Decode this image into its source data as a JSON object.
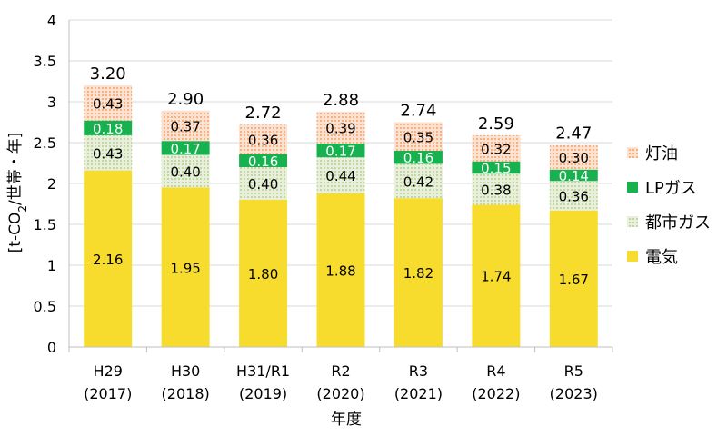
{
  "chart_data": {
    "type": "bar",
    "stacked": true,
    "categories": [
      [
        "H29",
        "(2017)"
      ],
      [
        "H30",
        "(2018)"
      ],
      [
        "H31/R1",
        "(2019)"
      ],
      [
        "R2",
        "(2020)"
      ],
      [
        "R3",
        "(2021)"
      ],
      [
        "R4",
        "(2022)"
      ],
      [
        "R5",
        "(2023)"
      ]
    ],
    "series": [
      {
        "name": "電気",
        "values": [
          2.16,
          1.95,
          1.8,
          1.88,
          1.82,
          1.74,
          1.67
        ],
        "labels": [
          "2.16",
          "1.95",
          "1.80",
          "1.88",
          "1.82",
          "1.74",
          "1.67"
        ],
        "color": "#f7dc2d",
        "label_color": "#000000",
        "pattern": "solid"
      },
      {
        "name": "都市ガス",
        "values": [
          0.43,
          0.4,
          0.4,
          0.44,
          0.42,
          0.38,
          0.36
        ],
        "labels": [
          "0.43",
          "0.40",
          "0.40",
          "0.44",
          "0.42",
          "0.38",
          "0.36"
        ],
        "color": "#d9e6c1",
        "label_color": "#000000",
        "pattern": "dots"
      },
      {
        "name": "LPガス",
        "values": [
          0.18,
          0.17,
          0.16,
          0.17,
          0.16,
          0.15,
          0.14
        ],
        "labels": [
          "0.18",
          "0.17",
          "0.16",
          "0.17",
          "0.16",
          "0.15",
          "0.14"
        ],
        "color": "#18b14f",
        "label_color": "#ffffff",
        "pattern": "solid"
      },
      {
        "name": "灯油",
        "values": [
          0.43,
          0.37,
          0.36,
          0.39,
          0.35,
          0.32,
          0.3
        ],
        "labels": [
          "0.43",
          "0.37",
          "0.36",
          "0.39",
          "0.35",
          "0.32",
          "0.30"
        ],
        "color": "#f8cbad",
        "label_color": "#000000",
        "pattern": "dots"
      }
    ],
    "totals": [
      "3.20",
      "2.90",
      "2.72",
      "2.88",
      "2.74",
      "2.59",
      "2.47"
    ],
    "ylim": [
      0,
      4
    ],
    "yticks": [
      "0",
      "0.5",
      "1",
      "1.5",
      "2",
      "2.5",
      "3",
      "3.5",
      "4"
    ],
    "ytick_values": [
      0,
      0.5,
      1,
      1.5,
      2,
      2.5,
      3,
      3.5,
      4
    ],
    "xlabel": "年度",
    "ylabel_parts": {
      "before": "[t-CO",
      "sub": "2",
      "after": "/世帯・年]"
    },
    "grid": true,
    "legend_position": "right",
    "legend_order": [
      "灯油",
      "LPガス",
      "都市ガス",
      "電気"
    ]
  }
}
